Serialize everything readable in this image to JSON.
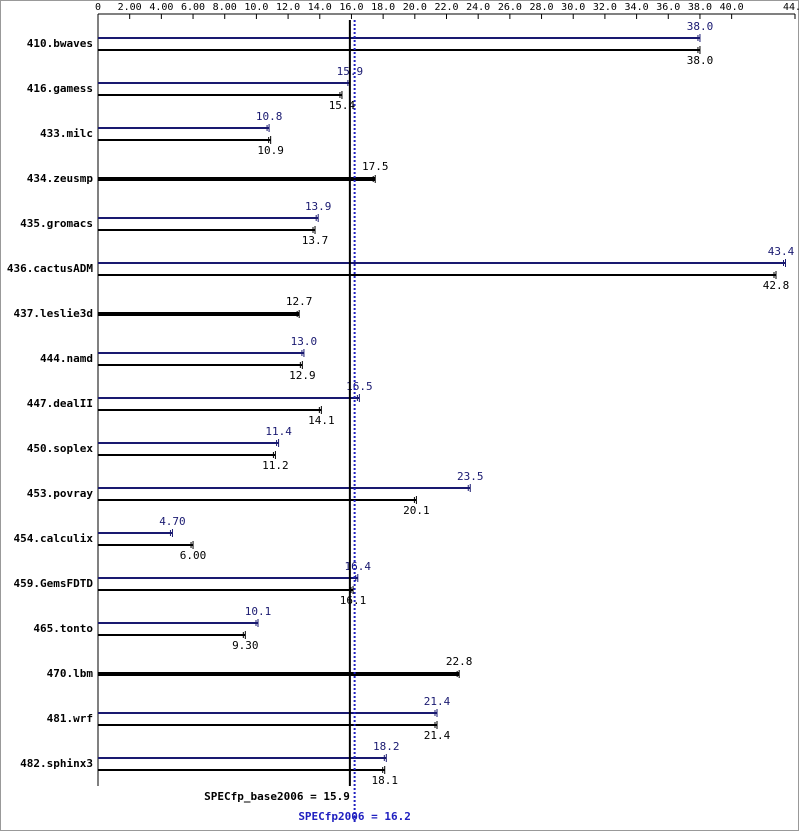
{
  "chart_data": {
    "type": "bar",
    "orientation": "horizontal",
    "categories": [
      "410.bwaves",
      "416.gamess",
      "433.milc",
      "434.zeusmp",
      "435.gromacs",
      "436.cactusADM",
      "437.leslie3d",
      "444.namd",
      "447.dealII",
      "450.soplex",
      "453.povray",
      "454.calculix",
      "459.GemsFDTD",
      "465.tonto",
      "470.lbm",
      "481.wrf",
      "482.sphinx3"
    ],
    "series": [
      {
        "color": "#191970",
        "values": [
          38.0,
          15.9,
          10.8,
          null,
          13.9,
          43.4,
          null,
          13.0,
          16.5,
          11.4,
          23.5,
          4.7,
          16.4,
          10.1,
          null,
          21.4,
          18.2
        ],
        "value_labels": [
          "38.0",
          "15.9",
          "10.8",
          null,
          "13.9",
          "43.4",
          null,
          "13.0",
          "16.5",
          "11.4",
          "23.5",
          "4.70",
          "16.4",
          "10.1",
          null,
          "21.4",
          "18.2"
        ]
      },
      {
        "color": "#000000",
        "values": [
          38.0,
          15.4,
          10.9,
          17.5,
          13.7,
          42.8,
          12.7,
          12.9,
          14.1,
          11.2,
          20.1,
          6.0,
          16.1,
          9.3,
          22.8,
          21.4,
          18.1
        ],
        "value_labels": [
          "38.0",
          "15.4",
          "10.9",
          "17.5",
          "13.7",
          "42.8",
          "12.7",
          "12.9",
          "14.1",
          "11.2",
          "20.1",
          "6.00",
          "16.1",
          "9.30",
          "22.8",
          "21.4",
          "18.1"
        ]
      }
    ],
    "xlim": [
      0,
      44
    ],
    "xticks": [
      0,
      {
        "value": 2,
        "label": "2.00"
      },
      {
        "value": 4,
        "label": "4.00"
      },
      {
        "value": 6,
        "label": "6.00"
      },
      {
        "value": 8,
        "label": "8.00"
      },
      {
        "value": 10,
        "label": "10.0"
      },
      {
        "value": 12,
        "label": "12.0"
      },
      {
        "value": 14,
        "label": "14.0"
      },
      {
        "value": 16,
        "label": "16.0"
      },
      {
        "value": 18,
        "label": "18.0"
      },
      {
        "value": 20,
        "label": "20.0"
      },
      {
        "value": 22,
        "label": "22.0"
      },
      {
        "value": 24,
        "label": "24.0"
      },
      {
        "value": 26,
        "label": "26.0"
      },
      {
        "value": 28,
        "label": "28.0"
      },
      {
        "value": 30,
        "label": "30.0"
      },
      {
        "value": 32,
        "label": "32.0"
      },
      {
        "value": 34,
        "label": "34.0"
      },
      {
        "value": 36,
        "label": "36.0"
      },
      {
        "value": 38,
        "label": "38.0"
      },
      {
        "value": 40,
        "label": "40.0"
      },
      {
        "value": 44,
        "label": "44.0"
      }
    ],
    "reference_lines": [
      {
        "label": "SPECfp_base2006 = 15.9",
        "value": 15.9,
        "color": "#000000",
        "style": "solid"
      },
      {
        "label": "SPECfp2006 = 16.2",
        "value": 16.2,
        "color": "#2020c0",
        "style": "dotted"
      }
    ]
  }
}
